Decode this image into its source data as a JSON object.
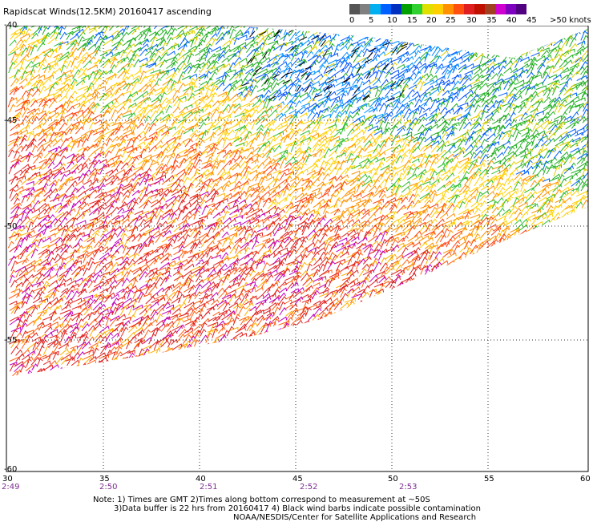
{
  "title": "Rapidscat Winds(12.5KM) 20160417 ascending",
  "legend": {
    "colors": [
      "#555555",
      "#808080",
      "#00b0f0",
      "#0060ff",
      "#0030c0",
      "#00a000",
      "#30d030",
      "#e0e000",
      "#ffd000",
      "#ff9000",
      "#ff5010",
      "#e02020",
      "#c01000",
      "#a04020",
      "#d000d0",
      "#8000c0",
      "#500080"
    ],
    "ticks": [
      "0",
      "5",
      "10",
      "15",
      "20",
      "25",
      "30",
      "35",
      "40",
      "45",
      ">50 knots"
    ]
  },
  "axes": {
    "lat_labels": [
      "-40",
      "-45",
      "-50",
      "-55",
      "-60"
    ],
    "lon_labels": [
      "30",
      "35",
      "40",
      "45",
      "50",
      "55",
      "60"
    ],
    "time_labels": [
      "2:49",
      "2:50",
      "2:51",
      "2:52",
      "2:53"
    ]
  },
  "notes": {
    "line1": "Note: 1) Times are GMT 2)Times along bottom correspond to measurement at ~50S",
    "line2": "3)Data buffer is 22 hrs from 20160417 4) Black wind barbs indicate possible contamination",
    "line3": "NOAA/NESDIS/Center for Satellite Applications and Research"
  }
}
